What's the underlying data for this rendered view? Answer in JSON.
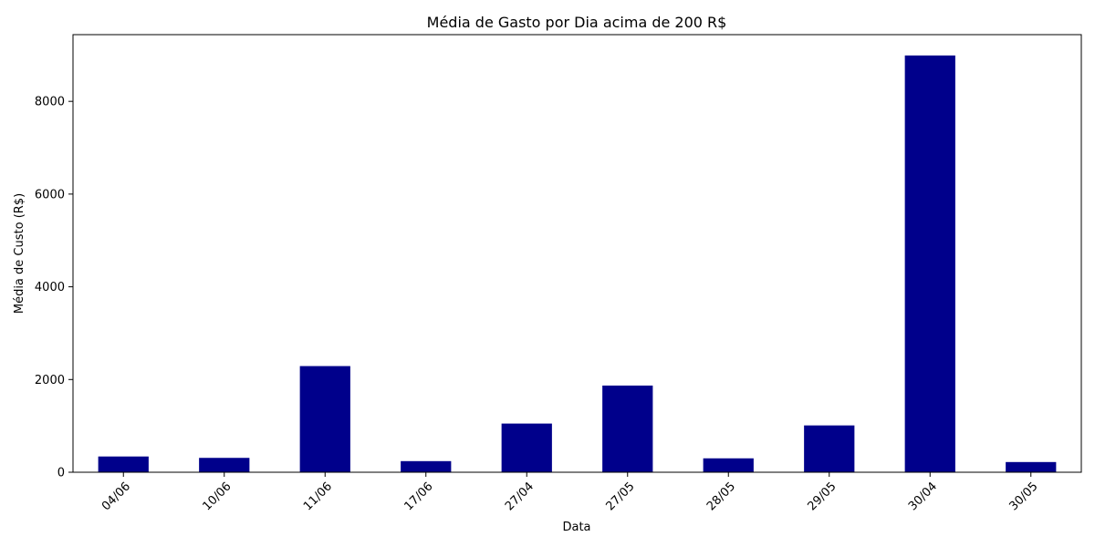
{
  "chart_data": {
    "type": "bar",
    "title": "Média de Gasto por Dia acima de 200 R$",
    "xlabel": "Data",
    "ylabel": "Média de Custo (R$)",
    "categories": [
      "04/06",
      "10/06",
      "11/06",
      "17/06",
      "27/04",
      "27/05",
      "28/05",
      "29/05",
      "30/04",
      "30/05"
    ],
    "values": [
      340,
      310,
      2290,
      240,
      1050,
      1870,
      300,
      1010,
      8990,
      220
    ],
    "ylim": [
      0,
      9439
    ],
    "yticks": [
      0,
      2000,
      4000,
      6000,
      8000
    ],
    "ytick_labels": [
      "0",
      "2000",
      "4000",
      "6000",
      "8000"
    ],
    "grid": false,
    "bar_color": "#00008b"
  }
}
